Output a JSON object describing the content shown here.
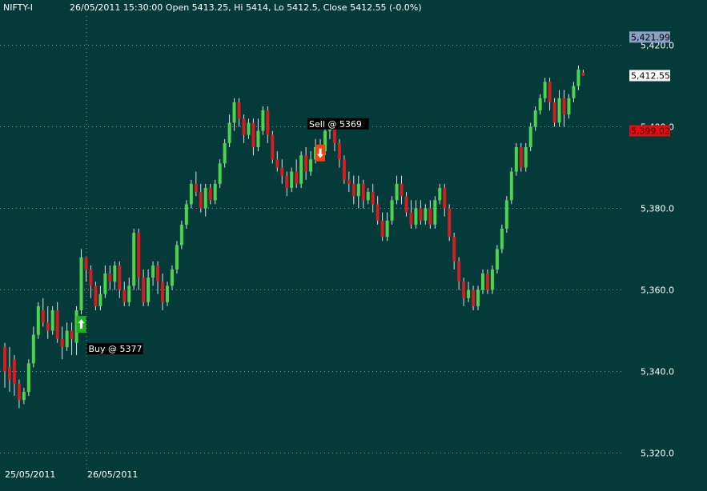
{
  "header": {
    "symbol": "NIFTY-I",
    "info": "26/05/2011 15:30:00 Open 5413.25, Hi 5414, Lo 5412.5, Close 5412.55 (-0.0%)"
  },
  "colors": {
    "background": "#053a3a",
    "up_candle": "#4cd44c",
    "down_candle": "#d11e1e",
    "wick": "#e0e0e0",
    "gridline": "#7a9a9a"
  },
  "chart_data": {
    "type": "candlestick",
    "title": "NIFTY-I",
    "ylim": [
      5318,
      5424
    ],
    "yticks": [
      5320,
      5340,
      5360,
      5380,
      5400,
      5420
    ],
    "ytick_labels": [
      "5,320.0",
      "5,340.0",
      "5,360.0",
      "5,380.0",
      "5,400.0",
      "5,420.0"
    ],
    "grid": true,
    "x_labels": [
      "25/05/2011",
      "26/05/2011"
    ],
    "candles": [
      [
        5346,
        5340,
        5347,
        5336
      ],
      [
        5341,
        5338,
        5346,
        5335
      ],
      [
        5343,
        5337,
        5344,
        5334
      ],
      [
        5337,
        5333,
        5338,
        5331
      ],
      [
        5333,
        5335,
        5336,
        5332
      ],
      [
        5335,
        5342,
        5343,
        5334
      ],
      [
        5342,
        5349,
        5351,
        5341
      ],
      [
        5349,
        5356,
        5357,
        5348
      ],
      [
        5355,
        5352,
        5358,
        5351
      ],
      [
        5352,
        5350,
        5356,
        5348
      ],
      [
        5350,
        5355,
        5356,
        5349
      ],
      [
        5355,
        5348,
        5357,
        5347
      ],
      [
        5348,
        5346,
        5351,
        5343
      ],
      [
        5346,
        5350,
        5352,
        5345
      ],
      [
        5350,
        5348,
        5352,
        5344
      ],
      [
        5347,
        5355,
        5356,
        5344
      ],
      [
        5355,
        5368,
        5370,
        5354
      ],
      [
        5368,
        5365,
        5368,
        5362
      ],
      [
        5365,
        5361,
        5366,
        5358
      ],
      [
        5361,
        5356,
        5362,
        5355
      ],
      [
        5356,
        5359,
        5361,
        5355
      ],
      [
        5359,
        5364,
        5366,
        5358
      ],
      [
        5364,
        5362,
        5366,
        5360
      ],
      [
        5362,
        5366,
        5367,
        5360
      ],
      [
        5366,
        5360,
        5367,
        5358
      ],
      [
        5360,
        5357,
        5362,
        5356
      ],
      [
        5357,
        5361,
        5363,
        5356
      ],
      [
        5361,
        5374,
        5375,
        5360
      ],
      [
        5374,
        5363,
        5375,
        5360
      ],
      [
        5363,
        5357,
        5365,
        5356
      ],
      [
        5357,
        5363,
        5365,
        5356
      ],
      [
        5363,
        5366,
        5367,
        5361
      ],
      [
        5366,
        5362,
        5367,
        5359
      ],
      [
        5362,
        5357,
        5364,
        5355
      ],
      [
        5357,
        5361,
        5362,
        5356
      ],
      [
        5361,
        5365,
        5366,
        5360
      ],
      [
        5365,
        5371,
        5372,
        5364
      ],
      [
        5371,
        5376,
        5377,
        5370
      ],
      [
        5376,
        5381,
        5382,
        5375
      ],
      [
        5381,
        5386,
        5387,
        5380
      ],
      [
        5386,
        5384,
        5389,
        5383
      ],
      [
        5384,
        5380,
        5386,
        5379
      ],
      [
        5380,
        5385,
        5386,
        5378
      ],
      [
        5385,
        5382,
        5386,
        5381
      ],
      [
        5382,
        5386,
        5387,
        5381
      ],
      [
        5386,
        5391,
        5392,
        5385
      ],
      [
        5391,
        5396,
        5397,
        5390
      ],
      [
        5396,
        5401,
        5403,
        5395
      ],
      [
        5401,
        5406,
        5407,
        5399
      ],
      [
        5406,
        5402,
        5407,
        5400
      ],
      [
        5402,
        5398,
        5403,
        5396
      ],
      [
        5398,
        5401,
        5402,
        5397
      ],
      [
        5401,
        5395,
        5402,
        5393
      ],
      [
        5395,
        5399,
        5402,
        5394
      ],
      [
        5399,
        5404,
        5405,
        5398
      ],
      [
        5404,
        5398,
        5405,
        5396
      ],
      [
        5398,
        5392,
        5399,
        5391
      ],
      [
        5392,
        5390,
        5394,
        5389
      ],
      [
        5390,
        5388,
        5392,
        5386
      ],
      [
        5388,
        5385,
        5389,
        5383
      ],
      [
        5385,
        5389,
        5390,
        5384
      ],
      [
        5389,
        5386,
        5392,
        5385
      ],
      [
        5386,
        5393,
        5394,
        5385
      ],
      [
        5393,
        5389,
        5395,
        5387
      ],
      [
        5389,
        5392,
        5394,
        5388
      ],
      [
        5392,
        5395,
        5397,
        5391
      ],
      [
        5395,
        5394,
        5397,
        5393
      ],
      [
        5394,
        5399,
        5400,
        5393
      ],
      [
        5399,
        5400,
        5401,
        5397
      ],
      [
        5400,
        5396,
        5401,
        5394
      ],
      [
        5396,
        5392,
        5397,
        5390
      ],
      [
        5392,
        5387,
        5393,
        5386
      ],
      [
        5387,
        5386,
        5389,
        5384
      ],
      [
        5386,
        5383,
        5388,
        5381
      ],
      [
        5383,
        5386,
        5388,
        5380
      ],
      [
        5386,
        5382,
        5387,
        5380
      ],
      [
        5382,
        5384,
        5385,
        5381
      ],
      [
        5384,
        5381,
        5386,
        5379
      ],
      [
        5381,
        5377,
        5383,
        5376
      ],
      [
        5377,
        5373,
        5379,
        5372
      ],
      [
        5373,
        5377,
        5379,
        5372
      ],
      [
        5377,
        5382,
        5383,
        5376
      ],
      [
        5382,
        5386,
        5388,
        5381
      ],
      [
        5386,
        5383,
        5388,
        5381
      ],
      [
        5383,
        5379,
        5384,
        5378
      ],
      [
        5379,
        5376,
        5382,
        5375
      ],
      [
        5376,
        5380,
        5382,
        5375
      ],
      [
        5380,
        5377,
        5382,
        5376
      ],
      [
        5377,
        5380,
        5381,
        5376
      ],
      [
        5380,
        5376,
        5382,
        5375
      ],
      [
        5376,
        5382,
        5383,
        5375
      ],
      [
        5382,
        5385,
        5386,
        5381
      ],
      [
        5385,
        5380,
        5386,
        5378
      ],
      [
        5380,
        5373,
        5381,
        5372
      ],
      [
        5373,
        5367,
        5374,
        5365
      ],
      [
        5367,
        5362,
        5368,
        5360
      ],
      [
        5362,
        5358,
        5363,
        5356
      ],
      [
        5358,
        5360,
        5362,
        5357
      ],
      [
        5360,
        5356,
        5361,
        5355
      ],
      [
        5356,
        5360,
        5361,
        5355
      ],
      [
        5360,
        5364,
        5365,
        5359
      ],
      [
        5364,
        5360,
        5365,
        5359
      ],
      [
        5360,
        5365,
        5366,
        5359
      ],
      [
        5365,
        5370,
        5371,
        5364
      ],
      [
        5370,
        5375,
        5376,
        5369
      ],
      [
        5375,
        5382,
        5383,
        5374
      ],
      [
        5382,
        5389,
        5390,
        5381
      ],
      [
        5389,
        5395,
        5396,
        5388
      ],
      [
        5395,
        5390,
        5396,
        5389
      ],
      [
        5390,
        5395,
        5396,
        5389
      ],
      [
        5395,
        5400,
        5401,
        5394
      ],
      [
        5400,
        5404,
        5405,
        5399
      ],
      [
        5404,
        5407,
        5408,
        5403
      ],
      [
        5407,
        5411,
        5412,
        5406
      ],
      [
        5411,
        5406,
        5412,
        5404
      ],
      [
        5406,
        5401,
        5407,
        5400
      ],
      [
        5401,
        5407,
        5409,
        5400
      ],
      [
        5407,
        5403,
        5409,
        5400
      ],
      [
        5403,
        5407,
        5408,
        5402
      ],
      [
        5407,
        5410,
        5411,
        5406
      ],
      [
        5410,
        5414,
        5415,
        5409
      ],
      [
        5413.25,
        5412.55,
        5414,
        5412.5
      ]
    ],
    "price_markers": [
      {
        "label": "5,421.99",
        "value": 5421.99,
        "bg": "#8aa0c4",
        "fg": "#000000"
      },
      {
        "label": "5,412.55",
        "value": 5412.55,
        "bg": "#ffffff",
        "fg": "#000000"
      },
      {
        "label": "5,399.02",
        "value": 5399.02,
        "bg": "#e01010",
        "fg": "#3a0000"
      }
    ],
    "annotations": [
      {
        "text": "Buy @ 5377",
        "type": "buy",
        "candle": 16
      },
      {
        "text": "Sell @ 5369",
        "type": "sell",
        "candle": 66
      }
    ]
  }
}
